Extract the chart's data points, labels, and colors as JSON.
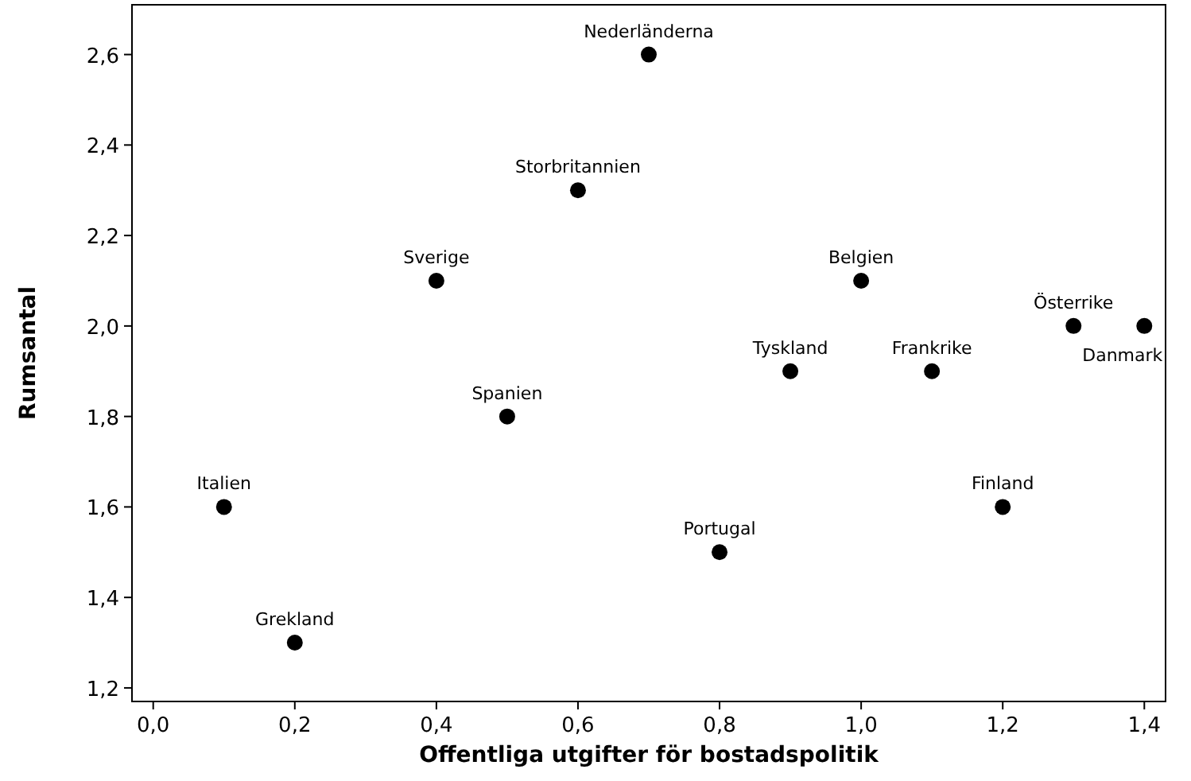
{
  "chart_data": {
    "type": "scatter",
    "xlabel": "Offentliga utgifter för bostadspolitik",
    "ylabel": "Rumsantal",
    "x": [
      0.7,
      0.6,
      0.4,
      1.0,
      1.3,
      1.4,
      0.9,
      1.1,
      0.5,
      0.1,
      1.2,
      0.8,
      0.2
    ],
    "values": [
      2.6,
      2.3,
      2.1,
      2.1,
      2.0,
      2.0,
      1.9,
      1.9,
      1.8,
      1.6,
      1.6,
      1.5,
      1.3
    ],
    "color": "#000000",
    "marker": "circle",
    "grid": false,
    "xlim": [
      -0.03,
      1.43
    ],
    "ylim": [
      1.17,
      2.71
    ],
    "xticks": [
      {
        "value": 0,
        "label": "0,0"
      },
      {
        "value": 0.2,
        "label": "0,2"
      },
      {
        "value": 0.4,
        "label": "0,4"
      },
      {
        "value": 0.6,
        "label": "0,6"
      },
      {
        "value": 0.8,
        "label": "0,8"
      },
      {
        "value": 1.0,
        "label": "1,0"
      },
      {
        "value": 1.2,
        "label": "1,2"
      },
      {
        "value": 1.4,
        "label": "1,4"
      }
    ],
    "yticks": [
      {
        "value": 1.2,
        "label": "1,2"
      },
      {
        "value": 1.4,
        "label": "1,4"
      },
      {
        "value": 1.6,
        "label": "1,6"
      },
      {
        "value": 1.8,
        "label": "1,8"
      },
      {
        "value": 2.0,
        "label": "2,0"
      },
      {
        "value": 2.2,
        "label": "2,2"
      },
      {
        "value": 2.4,
        "label": "2,4"
      },
      {
        "value": 2.6,
        "label": "2,6"
      }
    ],
    "annotations": [
      {
        "text": "Nederländerna",
        "x": 0.7,
        "y": 2.6
      },
      {
        "text": "Storbritannien",
        "x": 0.6,
        "y": 2.3
      },
      {
        "text": "Sverige",
        "x": 0.4,
        "y": 2.1
      },
      {
        "text": "Belgien",
        "x": 1.0,
        "y": 2.1
      },
      {
        "text": "Österrike",
        "x": 1.3,
        "y": 2.0
      },
      {
        "text": "Danmark",
        "x": 1.4,
        "y": 2.0
      },
      {
        "text": "Tyskland",
        "x": 0.9,
        "y": 1.9
      },
      {
        "text": "Frankrike",
        "x": 1.1,
        "y": 1.9
      },
      {
        "text": "Spanien",
        "x": 0.5,
        "y": 1.8
      },
      {
        "text": "Italien",
        "x": 0.1,
        "y": 1.6
      },
      {
        "text": "Finland",
        "x": 1.2,
        "y": 1.6
      },
      {
        "text": "Portugal",
        "x": 0.8,
        "y": 1.5
      },
      {
        "text": "Grekland",
        "x": 0.2,
        "y": 1.3
      }
    ]
  }
}
